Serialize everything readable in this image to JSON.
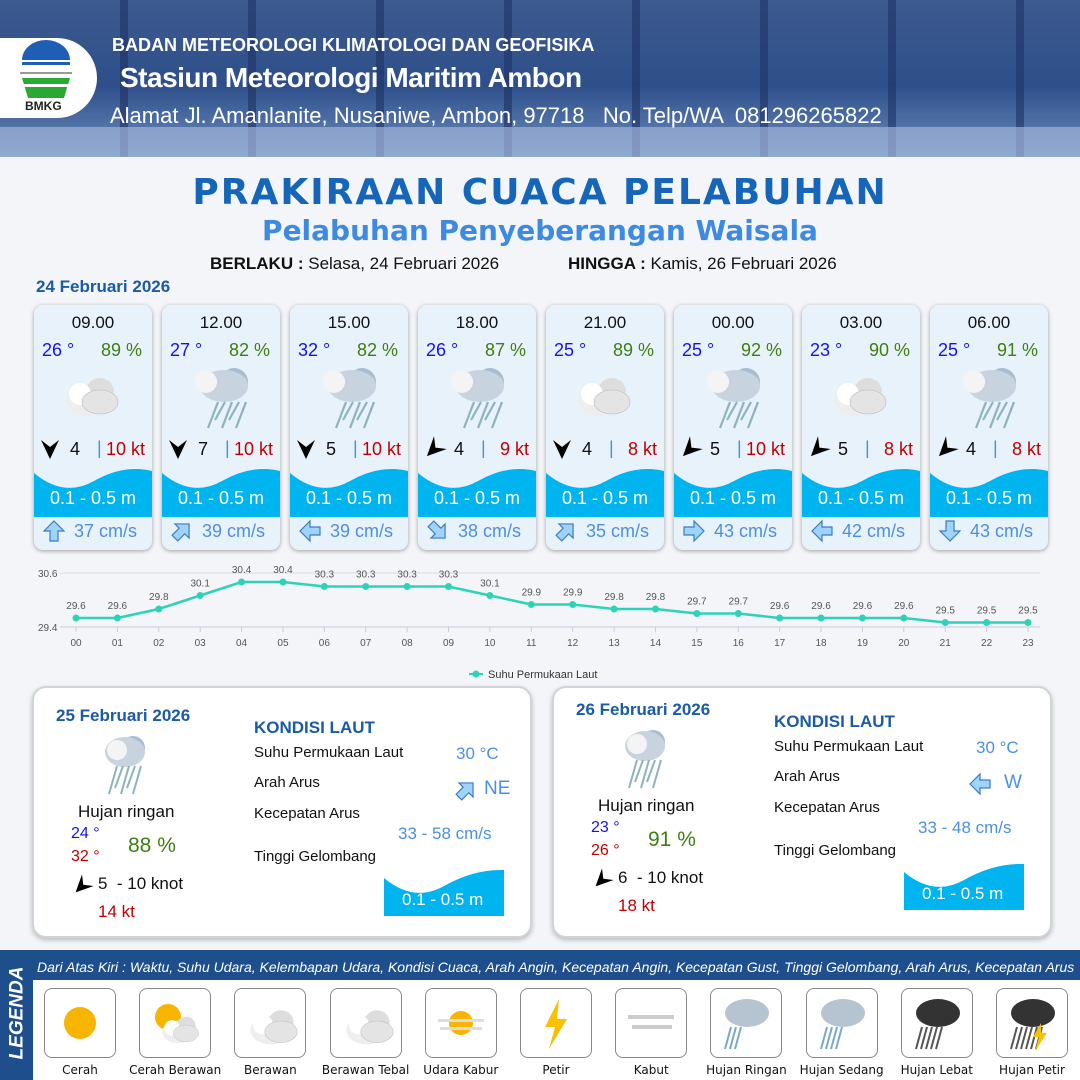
{
  "header": {
    "org": "BADAN METEOROLOGI KLIMATOLOGI DAN GEOFISIKA",
    "station": "Stasiun Meteorologi Maritim Ambon",
    "address": "Alamat Jl. Amanlanite, Nusaniwe, Ambon, 97718   No. Telp/WA  081296265822",
    "logo_text": "BMKG"
  },
  "title": "PRAKIRAAN CUACA PELABUHAN",
  "subtitle": "Pelabuhan Penyeberangan Waisala",
  "validity": {
    "from_label": "BERLAKU :",
    "from": "Selasa, 24 Februari 2026",
    "to_label": "HINGGA :",
    "to": "Kamis, 26 Februari 2026"
  },
  "day1": {
    "date": "24 Februari 2026",
    "forecasts": [
      {
        "time": "09.00",
        "temp": "26 °",
        "hum": "89 %",
        "weather": "berawan-tebal",
        "wind_dir": "S",
        "wind": "4",
        "gust": "10 kt",
        "wave": "0.1 - 0.5 m",
        "current_dir": "N",
        "current": "37 cm/s"
      },
      {
        "time": "12.00",
        "temp": "27 °",
        "hum": "82 %",
        "weather": "hujan-ringan",
        "wind_dir": "S",
        "wind": "7",
        "gust": "10 kt",
        "wave": "0.1 - 0.5 m",
        "current_dir": "NE",
        "current": "39 cm/s"
      },
      {
        "time": "15.00",
        "temp": "32 °",
        "hum": "82 %",
        "weather": "hujan-ringan",
        "wind_dir": "S",
        "wind": "5",
        "gust": "10 kt",
        "wave": "0.1 - 0.5 m",
        "current_dir": "W",
        "current": "39 cm/s"
      },
      {
        "time": "18.00",
        "temp": "26 °",
        "hum": "87 %",
        "weather": "hujan-ringan",
        "wind_dir": "SW",
        "wind": "4",
        "gust": "9 kt",
        "wave": "0.1 - 0.5 m",
        "current_dir": "SE",
        "current": "38 cm/s"
      },
      {
        "time": "21.00",
        "temp": "25 °",
        "hum": "89 %",
        "weather": "berawan-tebal",
        "wind_dir": "S",
        "wind": "4",
        "gust": "8 kt",
        "wave": "0.1 - 0.5 m",
        "current_dir": "NE",
        "current": "35 cm/s"
      },
      {
        "time": "00.00",
        "temp": "25 °",
        "hum": "92 %",
        "weather": "hujan-ringan",
        "wind_dir": "SW",
        "wind": "5",
        "gust": "10 kt",
        "wave": "0.1 - 0.5 m",
        "current_dir": "E",
        "current": "43 cm/s"
      },
      {
        "time": "03.00",
        "temp": "23 °",
        "hum": "90 %",
        "weather": "berawan-tebal",
        "wind_dir": "SW",
        "wind": "5",
        "gust": "8 kt",
        "wave": "0.1 - 0.5 m",
        "current_dir": "W",
        "current": "42 cm/s"
      },
      {
        "time": "06.00",
        "temp": "25 °",
        "hum": "91 %",
        "weather": "hujan-ringan",
        "wind_dir": "SW",
        "wind": "4",
        "gust": "8 kt",
        "wave": "0.1 - 0.5 m",
        "current_dir": "S",
        "current": "43 cm/s"
      }
    ]
  },
  "chart_data": {
    "type": "line",
    "x": [
      "00",
      "01",
      "02",
      "03",
      "04",
      "05",
      "06",
      "07",
      "08",
      "09",
      "10",
      "11",
      "12",
      "13",
      "14",
      "15",
      "16",
      "17",
      "18",
      "19",
      "20",
      "21",
      "22",
      "23"
    ],
    "series": [
      {
        "name": "Suhu Permukaan Laut",
        "values": [
          29.6,
          29.6,
          29.8,
          30.1,
          30.4,
          30.4,
          30.3,
          30.3,
          30.3,
          30.3,
          30.1,
          29.9,
          29.9,
          29.8,
          29.8,
          29.7,
          29.7,
          29.6,
          29.6,
          29.6,
          29.6,
          29.5,
          29.5,
          29.5
        ],
        "color": "#2ed3b7"
      }
    ],
    "yticks": [
      "30.6",
      "29.4"
    ],
    "ylim": [
      29.4,
      30.6
    ],
    "grid": true,
    "legend": "bottom"
  },
  "days": [
    {
      "date": "25 Februari 2026",
      "weather_label": "Hujan ringan",
      "tmin": "24 °",
      "tmax": "32 °",
      "hum": "88 %",
      "wind": "5  - 10 knot",
      "gust": "14 kt",
      "kondisi": "KONDISI LAUT",
      "sst_label": "Suhu Permukaan Laut",
      "sst": "30 °C",
      "dir_label": "Arah Arus",
      "dir": "NE",
      "speed_label": "Kecepatan Arus",
      "speed": "33 - 58 cm/s",
      "wave_label": "Tinggi Gelombang",
      "wave": "0.1 - 0.5 m"
    },
    {
      "date": "26 Februari 2026",
      "weather_label": "Hujan ringan",
      "tmin": "23 °",
      "tmax": "26 °",
      "hum": "91 %",
      "wind": "6  - 10 knot",
      "gust": "18 kt",
      "kondisi": "KONDISI LAUT",
      "sst_label": "Suhu Permukaan Laut",
      "sst": "30 °C",
      "dir_label": "Arah Arus",
      "dir": "W",
      "speed_label": "Kecepatan Arus",
      "speed": "33 - 48 cm/s",
      "wave_label": "Tinggi Gelombang",
      "wave": "0.1 - 0.5 m"
    }
  ],
  "legend": {
    "title": "LEGENDA",
    "description": "Dari Atas Kiri : Waktu, Suhu Udara, Kelembapan Udara, Kondisi Cuaca, Arah Angin, Kecepatan Angin, Kecepatan Gust, Tinggi Gelombang, Arah Arus, Kecepatan Arus",
    "items": [
      "Cerah",
      "Cerah Berawan",
      "Berawan",
      "Berawan Tebal",
      "Udara Kabur",
      "Petir",
      "Kabut",
      "Hujan Ringan",
      "Hujan Sedang",
      "Hujan Lebat",
      "Hujan Petir"
    ]
  },
  "colors": {
    "brand": "#1565b8",
    "wave": "#00b4f0",
    "temp": "#1212ee",
    "humidity": "#3d7f12",
    "gust": "#c00000",
    "current": "#4a90e2"
  }
}
